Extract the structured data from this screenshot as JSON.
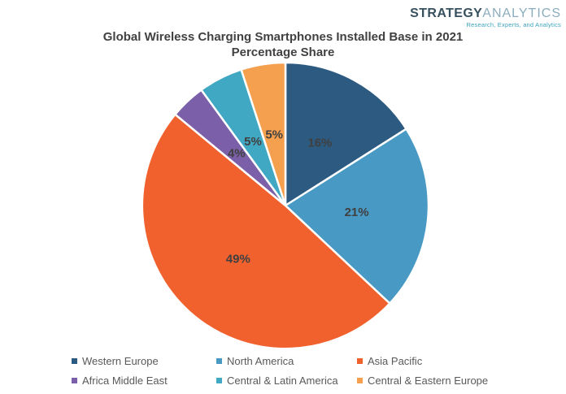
{
  "logo": {
    "brand_primary": "STRATEGY",
    "brand_secondary": "ANALYTICS",
    "tagline": "Research, Experts, and Analytics",
    "colors": {
      "primary": "#37505E",
      "secondary": "#8BADBD",
      "tagline": "#3BA3BE"
    }
  },
  "title": {
    "line1": "Global Wireless Charging Smartphones Installed Base in 2021",
    "line2": "Percentage Share",
    "color": "#414141"
  },
  "chart_data": {
    "type": "pie",
    "title": "Global Wireless Charging Smartphones Installed Base in 2021 Percentage Share",
    "units": "percent",
    "start_angle_deg": 0,
    "direction": "clockwise",
    "legend_position": "bottom",
    "label_color": "#404040",
    "slice_border_color": "#ffffff",
    "slices": [
      {
        "label": "Western Europe",
        "value": 16,
        "display": "16%",
        "color": "#2D5A80"
      },
      {
        "label": "North America",
        "value": 21,
        "display": "21%",
        "color": "#4899C3"
      },
      {
        "label": "Asia Pacific",
        "value": 49,
        "display": "49%",
        "color": "#F1612E"
      },
      {
        "label": "Africa Middle East",
        "value": 4,
        "display": "4%",
        "color": "#7B5FA8"
      },
      {
        "label": "Central & Latin America",
        "value": 5,
        "display": "5%",
        "color": "#41A8C3"
      },
      {
        "label": "Central & Eastern Europe",
        "value": 5,
        "display": "5%",
        "color": "#F5A04F"
      }
    ]
  },
  "legend": {
    "text_color": "#595959"
  }
}
